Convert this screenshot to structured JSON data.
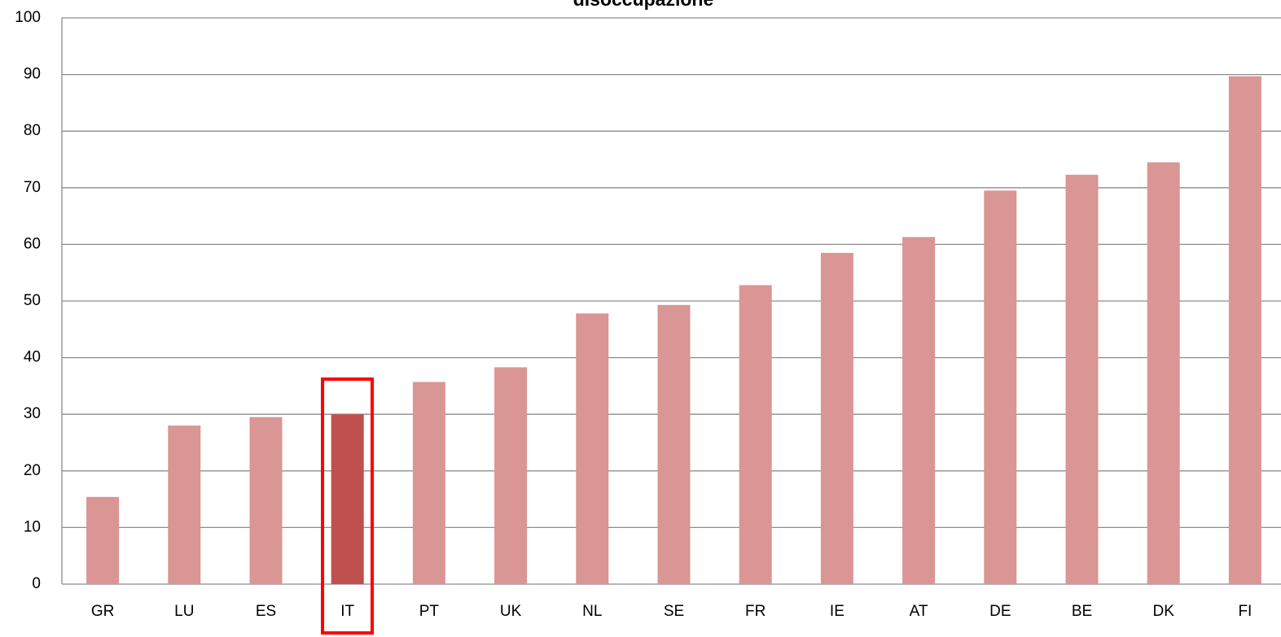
{
  "chart_data": {
    "type": "bar",
    "title": "disoccupazione",
    "categories": [
      "GR",
      "LU",
      "ES",
      "IT",
      "PT",
      "UK",
      "NL",
      "SE",
      "FR",
      "IE",
      "AT",
      "DE",
      "BE",
      "DK",
      "FI"
    ],
    "values": [
      15.4,
      28,
      29.5,
      30,
      35.7,
      38.3,
      47.8,
      49.3,
      52.8,
      58.5,
      61.3,
      69.5,
      72.3,
      74.5,
      89.7
    ],
    "colors": [
      "#d99694",
      "#d99694",
      "#d99694",
      "#c0504d",
      "#d99694",
      "#d99694",
      "#d99694",
      "#d99694",
      "#d99694",
      "#d99694",
      "#d99694",
      "#d99694",
      "#d99694",
      "#d99694",
      "#d99694"
    ],
    "ylim": [
      0,
      100
    ],
    "yticks": [
      0,
      10,
      20,
      30,
      40,
      50,
      60,
      70,
      80,
      90,
      100
    ],
    "grid": true
  }
}
